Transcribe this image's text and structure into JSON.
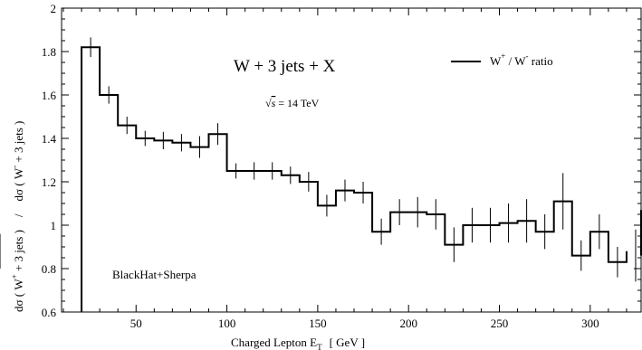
{
  "chart_data": {
    "type": "line",
    "style": "histogram-step-with-error-bars",
    "x_edges": [
      20,
      30,
      40,
      50,
      60,
      70,
      80,
      90,
      100,
      110,
      120,
      130,
      140,
      150,
      160,
      170,
      180,
      190,
      200,
      210,
      220,
      230,
      240,
      250,
      260,
      270,
      280,
      290,
      300,
      310,
      320
    ],
    "values": [
      1.82,
      1.6,
      1.46,
      1.4,
      1.39,
      1.38,
      1.36,
      1.42,
      1.25,
      1.25,
      1.25,
      1.23,
      1.2,
      1.09,
      1.16,
      1.15,
      0.97,
      1.06,
      1.06,
      1.05,
      0.91,
      1.0,
      1.0,
      1.01,
      1.02,
      0.97,
      1.11,
      0.86,
      0.97,
      0.83,
      0.88
    ],
    "errors": [
      0.045,
      0.04,
      0.04,
      0.035,
      0.04,
      0.04,
      0.05,
      0.05,
      0.035,
      0.04,
      0.04,
      0.04,
      0.045,
      0.05,
      0.05,
      0.05,
      0.06,
      0.06,
      0.07,
      0.07,
      0.08,
      0.08,
      0.08,
      0.09,
      0.1,
      0.08,
      0.13,
      0.07,
      0.08,
      0.07,
      0.08
    ],
    "last_partial": {
      "x_start": 320,
      "value": 0.86,
      "error": 0.12,
      "edge_value": 1.07
    },
    "xlim": [
      9,
      328
    ],
    "ylim": [
      0.6,
      2.0
    ],
    "xticks": [
      50,
      100,
      150,
      200,
      250,
      300
    ],
    "xtick_labels": [
      "50",
      "100",
      "150",
      "200",
      "250",
      "300"
    ],
    "yticks": [
      0.6,
      0.8,
      1.0,
      1.2,
      1.4,
      1.6,
      1.8,
      2.0
    ],
    "ytick_labels": [
      "0.6",
      "0.8",
      "1",
      "1.2",
      "1.4",
      "1.6",
      "1.8",
      "2"
    ],
    "x_minor_step": 10,
    "y_minor_step": 0.05,
    "xlabel": "Charged Lepton E",
    "xlabel_sub": "T",
    "xlabel_unit": "[ GeV ]",
    "ylabel_num_pre": "dσ ( W",
    "ylabel_num_sup": "+",
    "ylabel_num_post": " + 3 jets )",
    "ylabel_sep": "/",
    "ylabel_den_pre": "dσ ( W",
    "ylabel_den_sup": "-",
    "ylabel_den_post": " + 3 jets )",
    "title": "W + 3 jets + X",
    "energy_sqrt": "√",
    "energy_var": "s",
    "energy_value": " = 14 TeV",
    "legend_pre": "W",
    "legend_sup1": "+",
    "legend_mid": " / W",
    "legend_sup2": "-",
    "legend_post": "  ratio",
    "legend_position": "top-right",
    "annotation": "BlackHat+Sherpa",
    "grid": false,
    "line_color": "#000000"
  }
}
